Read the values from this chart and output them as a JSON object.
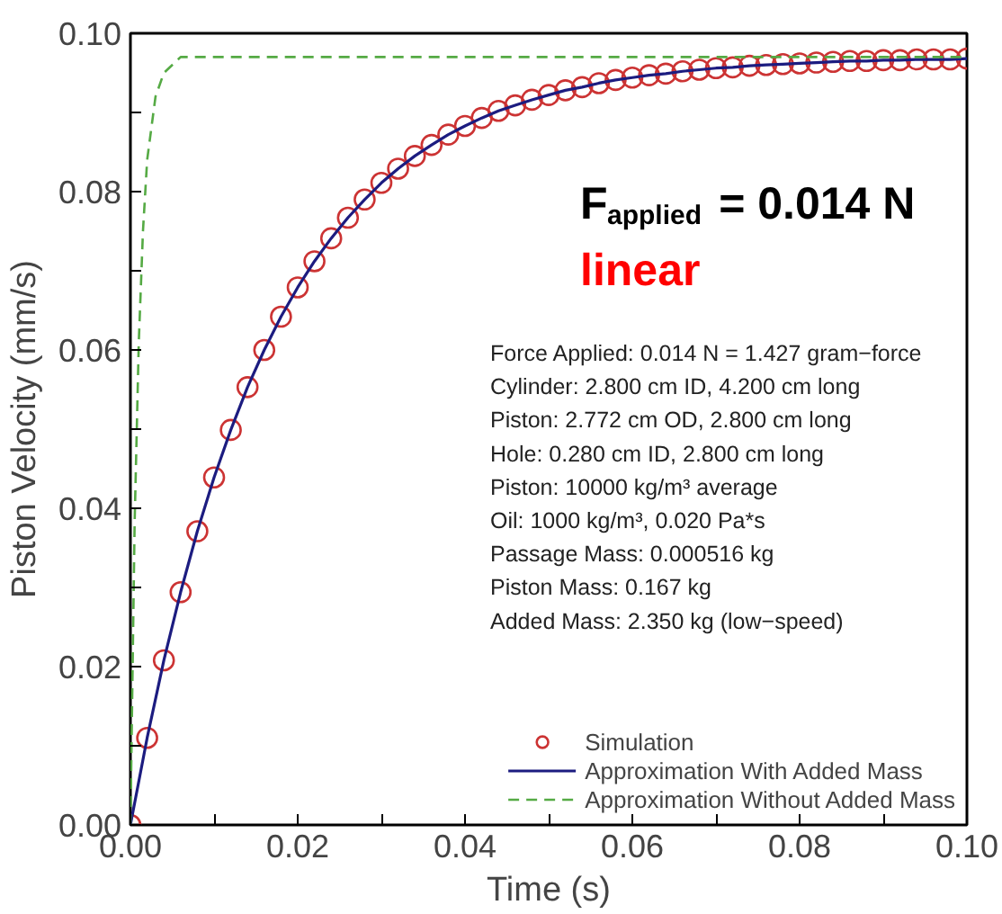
{
  "chart_data": {
    "type": "line",
    "xlabel": "Time (s)",
    "ylabel": "Piston Velocity (mm/s)",
    "xlim": [
      0,
      0.1
    ],
    "ylim": [
      0,
      0.1
    ],
    "xticks": [
      {
        "value": 0,
        "label": "0.00"
      },
      {
        "value": 0.01,
        "label": null
      },
      {
        "value": 0.02,
        "label": "0.02"
      },
      {
        "value": 0.03,
        "label": null
      },
      {
        "value": 0.04,
        "label": "0.04"
      },
      {
        "value": 0.05,
        "label": null
      },
      {
        "value": 0.06,
        "label": "0.06"
      },
      {
        "value": 0.07,
        "label": null
      },
      {
        "value": 0.08,
        "label": "0.08"
      },
      {
        "value": 0.09,
        "label": null
      },
      {
        "value": 0.1,
        "label": "0.10"
      }
    ],
    "yticks": [
      {
        "value": 0,
        "label": "0.00"
      },
      {
        "value": 0.01,
        "label": null
      },
      {
        "value": 0.02,
        "label": "0.02"
      },
      {
        "value": 0.03,
        "label": null
      },
      {
        "value": 0.04,
        "label": "0.04"
      },
      {
        "value": 0.05,
        "label": null
      },
      {
        "value": 0.06,
        "label": "0.06"
      },
      {
        "value": 0.07,
        "label": null
      },
      {
        "value": 0.08,
        "label": "0.08"
      },
      {
        "value": 0.09,
        "label": null
      },
      {
        "value": 0.1,
        "label": "0.10"
      }
    ],
    "grid": false,
    "legend": "bottom right",
    "annotations": [
      "F$_{applied}$ = 0.014 N",
      "linear",
      "Force Applied: 0.014 N = 1.427 gram−force",
      "Cylinder: 2.800 cm ID, 4.200 cm long",
      "Piston: 2.772 cm OD, 2.800 cm long",
      "Hole: 0.280 cm ID, 2.800 cm long",
      "Piston: 10000 kg/m³ average",
      "Oil: 1000 kg/m³, 0.020 Pa*s",
      "Passage Mass: 0.000516 kg",
      "Piston Mass: 0.167 kg",
      "Added Mass: 2.350 kg (low−speed)"
    ],
    "x": [
      0,
      0.002,
      0.004,
      0.006,
      0.008,
      0.01,
      0.012,
      0.014,
      0.016,
      0.018,
      0.02,
      0.022,
      0.024,
      0.026,
      0.028,
      0.03,
      0.032,
      0.034,
      0.036,
      0.038,
      0.04,
      0.042,
      0.044,
      0.046,
      0.048,
      0.05,
      0.052,
      0.054,
      0.056,
      0.058,
      0.06,
      0.062,
      0.064,
      0.066,
      0.068,
      0.07,
      0.072,
      0.074,
      0.076,
      0.078,
      0.08,
      0.082,
      0.084,
      0.086,
      0.088,
      0.09,
      0.092,
      0.094,
      0.096,
      0.098,
      0.1
    ],
    "series": [
      {
        "name": "Simulation",
        "type": "scatter",
        "marker": "circle",
        "color": "#cc3333",
        "values": [
          0,
          0.011,
          0.0208,
          0.0294,
          0.0371,
          0.0439,
          0.0499,
          0.0553,
          0.06,
          0.0642,
          0.0679,
          0.0712,
          0.0741,
          0.0767,
          0.079,
          0.0811,
          0.0829,
          0.0845,
          0.0859,
          0.0872,
          0.0883,
          0.0893,
          0.0902,
          0.0909,
          0.0916,
          0.0922,
          0.0928,
          0.0932,
          0.0937,
          0.0941,
          0.0944,
          0.0947,
          0.0949,
          0.0952,
          0.0954,
          0.0956,
          0.0957,
          0.0959,
          0.096,
          0.0961,
          0.0962,
          0.0963,
          0.0964,
          0.0965,
          0.0965,
          0.0966,
          0.0966,
          0.0967,
          0.0967,
          0.0967,
          0.0968
        ]
      },
      {
        "name": "Approximation With Added Mass",
        "line_style": "solid",
        "color": "#1c1c80",
        "values": [
          0,
          0.011,
          0.0208,
          0.0294,
          0.0371,
          0.0439,
          0.0499,
          0.0553,
          0.06,
          0.0642,
          0.0679,
          0.0712,
          0.0741,
          0.0767,
          0.079,
          0.0811,
          0.0829,
          0.0845,
          0.0859,
          0.0872,
          0.0883,
          0.0893,
          0.0902,
          0.0909,
          0.0916,
          0.0922,
          0.0928,
          0.0932,
          0.0937,
          0.0941,
          0.0944,
          0.0947,
          0.0949,
          0.0952,
          0.0954,
          0.0956,
          0.0957,
          0.0959,
          0.096,
          0.0961,
          0.0962,
          0.0963,
          0.0964,
          0.0965,
          0.0965,
          0.0966,
          0.0966,
          0.0967,
          0.0967,
          0.0967,
          0.0968
        ]
      },
      {
        "name": "Approximation Without Added Mass",
        "line_style": "dashed",
        "color": "#55aa44",
        "x": [
          0,
          0.0005,
          0.001,
          0.0015,
          0.002,
          0.003,
          0.004,
          0.005,
          0.006,
          0.008,
          0.1
        ],
        "values": [
          0,
          0.038,
          0.061,
          0.075,
          0.084,
          0.092,
          0.095,
          0.096,
          0.097,
          0.097,
          0.097
        ]
      }
    ]
  }
}
